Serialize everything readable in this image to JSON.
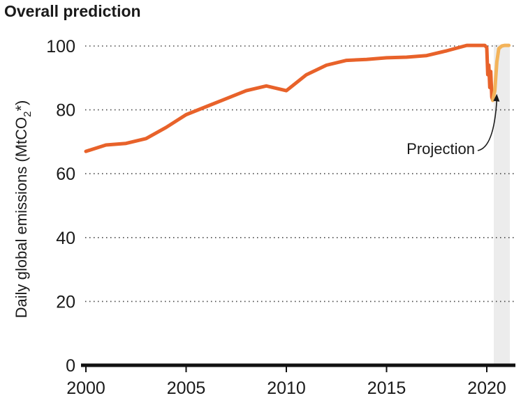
{
  "chart_data": {
    "type": "line",
    "title": "Overall prediction",
    "ylabel": "Daily global emissions (MtCO2*)",
    "ylabel_parts": {
      "pre": "Daily global emissions (MtCO",
      "sub": "2",
      "post": "*)"
    },
    "xlim": [
      2000,
      2021.2
    ],
    "ylim": [
      0,
      100
    ],
    "x_ticks": [
      2000,
      2005,
      2010,
      2015,
      2020
    ],
    "y_ticks": [
      0,
      20,
      40,
      60,
      80,
      100
    ],
    "grid": "horizontal dotted",
    "series": [
      {
        "name": "",
        "color": "#e8622a",
        "x": [
          2000,
          2001,
          2002,
          2003,
          2004,
          2005,
          2006,
          2007,
          2008,
          2009,
          2010,
          2011,
          2012,
          2013,
          2014,
          2015,
          2016,
          2017,
          2018,
          2019,
          2019.9,
          2020.0,
          2020.05,
          2020.1,
          2020.15,
          2020.2,
          2020.25,
          2020.3
        ],
        "y": [
          67,
          69,
          69.5,
          71,
          74.5,
          78.5,
          81,
          83.5,
          86,
          87.5,
          86,
          91,
          94,
          95.5,
          95.8,
          96.3,
          96.5,
          97,
          98.5,
          100.2,
          100.2,
          99.5,
          91,
          94,
          87,
          92,
          84,
          83
        ]
      },
      {
        "name": "Projection",
        "color": "#f3b35a",
        "x": [
          2020.3,
          2020.4,
          2020.5,
          2020.6,
          2020.75,
          2020.9,
          2021.1
        ],
        "y": [
          83,
          86,
          95,
          99.2,
          100,
          100.2,
          100.2
        ]
      }
    ],
    "annotations": [
      {
        "text": "Projection",
        "target_x": 2020.5,
        "target_y": 85
      }
    ],
    "shaded_region": {
      "x": [
        2020.35,
        2021.15
      ],
      "label": "Projection",
      "color": "#ececec"
    }
  }
}
